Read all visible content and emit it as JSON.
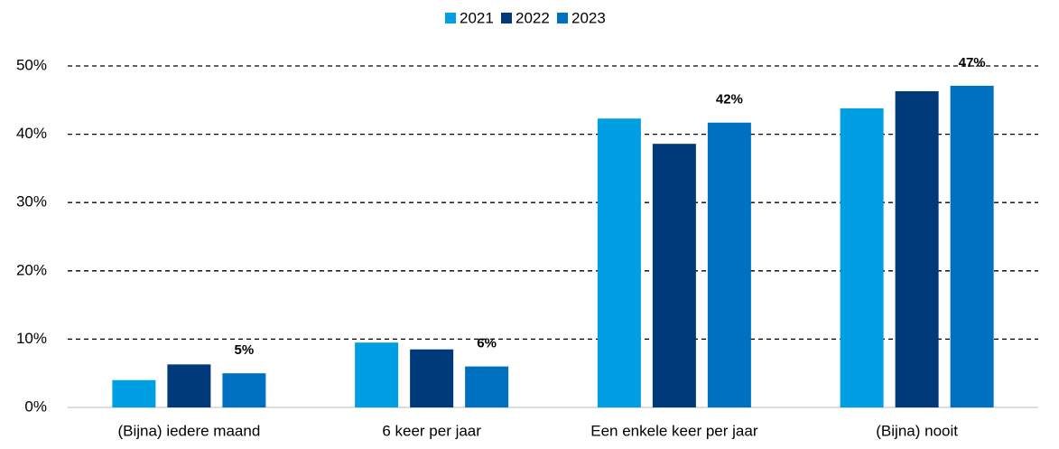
{
  "chart_data": {
    "type": "bar",
    "categories": [
      "(Bijna) iedere maand",
      "6 keer per jaar",
      "Een enkele keer per jaar",
      "(Bijna) nooit"
    ],
    "series": [
      {
        "name": "2021",
        "color": "#009fe3",
        "values": [
          4.0,
          9.5,
          42.3,
          43.8
        ]
      },
      {
        "name": "2022",
        "color": "#003a7a",
        "values": [
          6.3,
          8.5,
          38.6,
          46.3
        ]
      },
      {
        "name": "2023",
        "color": "#0070c0",
        "values": [
          5.0,
          6.0,
          41.7,
          47.1
        ],
        "value_labels": [
          "5%",
          "6%",
          "42%",
          "47%"
        ]
      }
    ],
    "ylim": [
      0,
      50
    ],
    "yticks": [
      {
        "value": 0,
        "label": "0%"
      },
      {
        "value": 10,
        "label": "10%"
      },
      {
        "value": 20,
        "label": "20%"
      },
      {
        "value": 30,
        "label": "30%"
      },
      {
        "value": 40,
        "label": "40%"
      },
      {
        "value": 50,
        "label": "50%"
      }
    ],
    "grid": true,
    "legend": "top"
  }
}
